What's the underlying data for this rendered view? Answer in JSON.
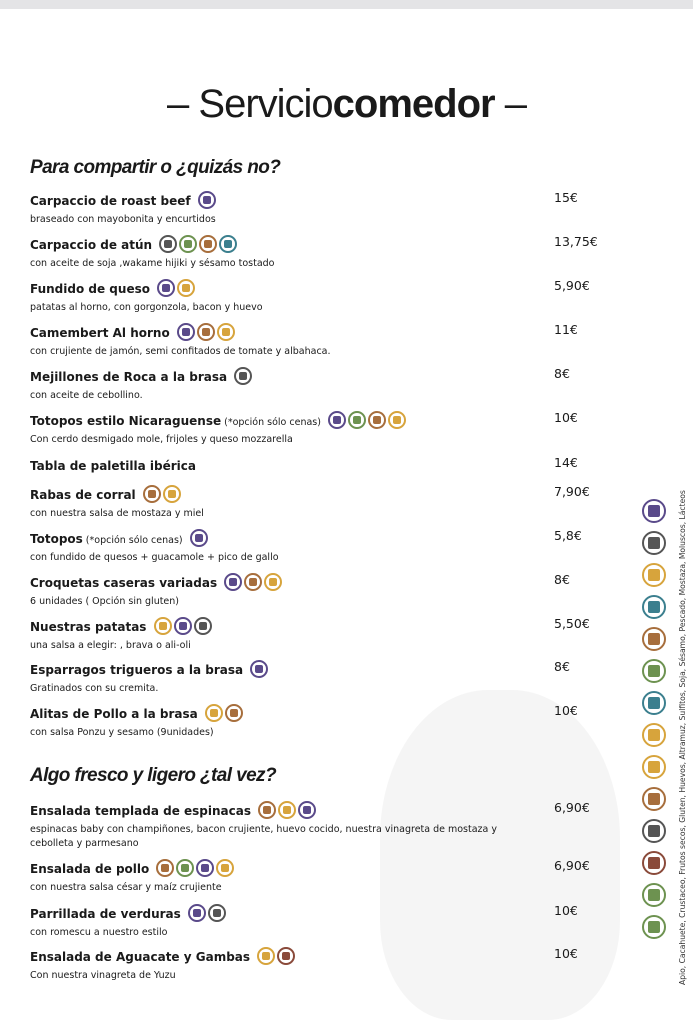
{
  "header": {
    "title_light": "Servicio",
    "title_bold": "comedor"
  },
  "sections": [
    {
      "title": "Para compartir o ¿quizás no?",
      "items": [
        {
          "name": "Carpaccio de roast beef",
          "description": "braseado con mayobonita y encurtidos",
          "price": "15€"
        },
        {
          "name": "Carpaccio de atún",
          "description": "con aceite de soja ,wakame hijiki y sésamo tostado",
          "price": "13,75€"
        },
        {
          "name": "Fundido de queso",
          "description": "patatas al horno, con gorgonzola, bacon y huevo",
          "price": "5,90€"
        },
        {
          "name": "Camembert Al horno",
          "description": "con crujiente de jamón, semi confitados de tomate y albahaca.",
          "price": "11€"
        },
        {
          "name": "Mejillones de Roca  a la brasa",
          "description": "con  aceite de cebollino.",
          "price": "8€"
        },
        {
          "name": "Totopos estilo Nicaraguense",
          "note": "(*opción sólo cenas)",
          "description": "Con cerdo desmigado mole, frijoles y queso mozzarella",
          "price": "10€"
        },
        {
          "name": "Tabla de paletilla ibérica",
          "price": "14€"
        },
        {
          "name": "Rabas de corral",
          "description": "con nuestra salsa de mostaza y miel",
          "price": "7,90€"
        },
        {
          "name": "Totopos",
          "note": "(*opción sólo cenas)",
          "description": "con fundido de quesos + guacamole +  pico de gallo",
          "price": "5,8€"
        },
        {
          "name": "Croquetas caseras  variadas",
          "description": "6 unidades ( Opción sin gluten)",
          "price": "8€"
        },
        {
          "name": "Nuestras patatas",
          "description": "una salsa a elegir: , brava o ali-oli",
          "price": "5,50€"
        },
        {
          "name": "Esparragos trigueros a la brasa",
          "description": "Gratinados con su cremita.",
          "price": "8€"
        },
        {
          "name": "Alitas de Pollo a la brasa",
          "description": "con salsa Ponzu y sesamo (9unidades)",
          "price": "10€"
        }
      ]
    },
    {
      "title": "Algo fresco y ligero ¿tal vez?",
      "items": [
        {
          "name": "Ensalada templada de espinacas",
          "description": "espinacas baby con champiñones, bacon crujiente, huevo cocido, nuestra vinagreta de mostaza y cebolleta y parmesano",
          "price": "6,90€"
        },
        {
          "name": "Ensalada de pollo",
          "description": "con nuestra salsa césar y maíz crujiente",
          "price": "6,90€"
        },
        {
          "name": "Parrillada de verduras",
          "description": "con romescu a nuestro estilo",
          "price": "10€"
        },
        {
          "name": "Ensalada de Aguacate y Gambas",
          "description": "Con nuestra vinagreta de Yuzu",
          "price": "10€"
        }
      ]
    }
  ],
  "legend": "Apio, Cacahuete, Crustaceo, Frutos secos, Gluten, Huevos, Altramuz, Sulfitos, Soja, Sésamo, Pescado, Mostaza, Moluscos, Lácteos"
}
